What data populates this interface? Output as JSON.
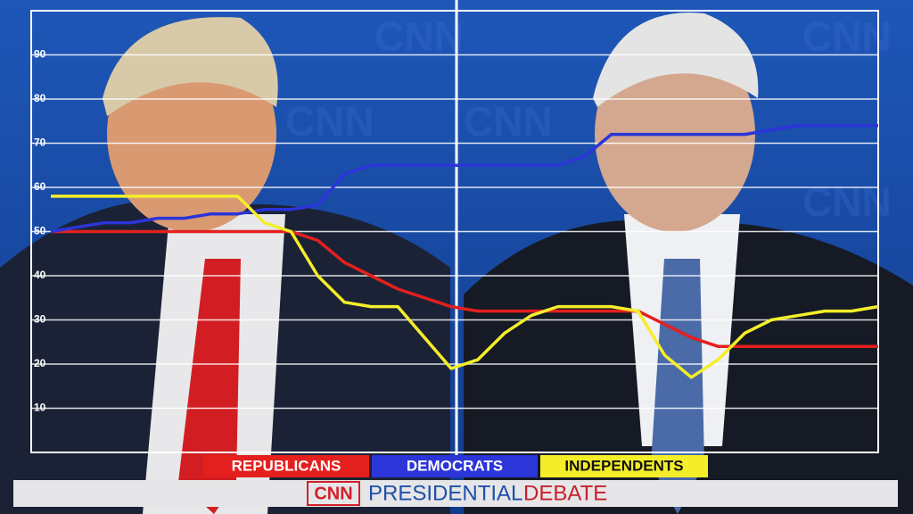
{
  "chart_data": {
    "type": "line",
    "categories": [
      null,
      null,
      null,
      null,
      null,
      null,
      null,
      null,
      null,
      null,
      null,
      null,
      null,
      null,
      null,
      null,
      null,
      null,
      null,
      null,
      null,
      null,
      null,
      null,
      null,
      null,
      null,
      null,
      null,
      null,
      null,
      null
    ],
    "series": [
      {
        "name": "REPUBLICANS",
        "color": "#e3201e",
        "values": [
          50,
          50,
          50,
          50,
          50,
          50,
          50,
          50,
          50,
          50,
          48,
          43,
          40,
          37,
          35,
          33,
          32,
          32,
          32,
          32,
          32,
          32,
          32,
          29,
          26,
          24,
          24,
          24,
          24,
          24,
          24,
          24
        ]
      },
      {
        "name": "DEMOCRATS",
        "color": "#2b35d8",
        "values": [
          50,
          51,
          52,
          52,
          53,
          53,
          54,
          54,
          55,
          55,
          56,
          63,
          65,
          65,
          65,
          65,
          65,
          65,
          65,
          65,
          67,
          72,
          72,
          72,
          72,
          72,
          72,
          73,
          74,
          74,
          74,
          74
        ]
      },
      {
        "name": "INDEPENDENTS",
        "color": "#f4ee2a",
        "values": [
          58,
          58,
          58,
          58,
          58,
          58,
          58,
          58,
          52,
          50,
          40,
          34,
          33,
          33,
          26,
          19,
          21,
          27,
          31,
          33,
          33,
          33,
          32,
          22,
          17,
          21,
          27,
          30,
          31,
          32,
          32,
          33
        ]
      }
    ],
    "ylim": [
      0,
      100
    ],
    "yticks": [
      10,
      20,
      30,
      40,
      50,
      60,
      70,
      80,
      90
    ],
    "grid": true,
    "banner": {
      "network": "CNN",
      "title_1": "PRESIDENTIAL",
      "title_2": "DEBATE"
    },
    "watermark": "CNN"
  }
}
